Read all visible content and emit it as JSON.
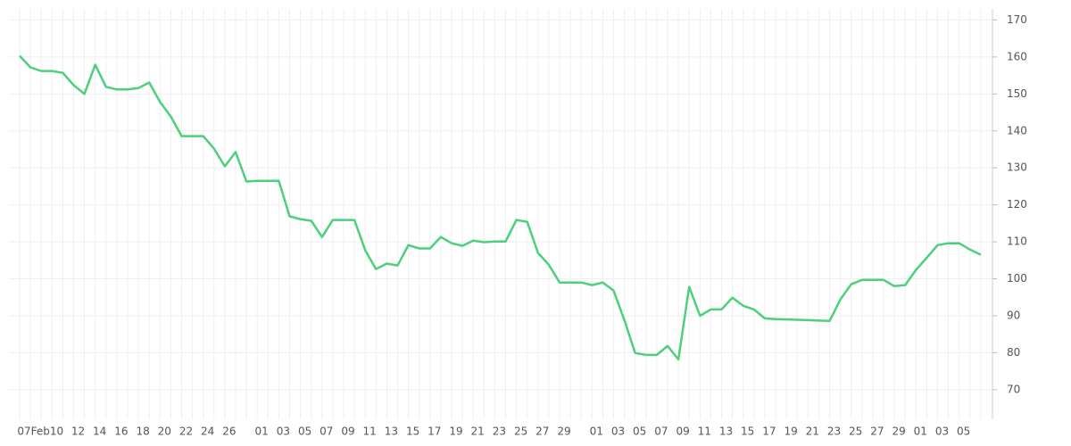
{
  "chart_data": {
    "type": "line",
    "categories": [
      "07",
      "Feb",
      null,
      "10",
      null,
      "12",
      null,
      "14",
      null,
      "16",
      null,
      "18",
      null,
      "20",
      null,
      "22",
      null,
      "24",
      null,
      "26",
      null,
      null,
      "01",
      null,
      "03",
      null,
      "05",
      null,
      "07",
      null,
      "09",
      null,
      "11",
      null,
      "13",
      null,
      "15",
      null,
      "17",
      null,
      "19",
      null,
      "21",
      null,
      "23",
      null,
      "25",
      null,
      "27",
      null,
      "29",
      null,
      null,
      "01",
      null,
      "03",
      null,
      "05",
      null,
      "07",
      null,
      "09",
      null,
      "11",
      null,
      "13",
      null,
      "15",
      null,
      "17",
      null,
      "19",
      null,
      "21",
      null,
      "23",
      null,
      "25",
      null,
      "27",
      null,
      "29",
      null,
      "01",
      null,
      "03",
      null,
      "05",
      null,
      null
    ],
    "values": [
      160.3,
      157.2,
      156.2,
      156.2,
      155.7,
      152.4,
      150.0,
      157.9,
      151.9,
      151.2,
      151.2,
      151.6,
      153.1,
      147.8,
      143.9,
      138.6,
      138.6,
      138.6,
      135.2,
      130.4,
      134.3,
      126.3,
      126.5,
      126.5,
      126.5,
      116.9,
      116.1,
      115.7,
      111.3,
      115.9,
      115.9,
      115.9,
      107.7,
      102.6,
      104.1,
      103.6,
      109.1,
      108.2,
      108.2,
      111.3,
      109.6,
      108.9,
      110.3,
      109.9,
      110.1,
      110.1,
      115.9,
      115.4,
      107.0,
      103.8,
      99.0,
      99.0,
      99.0,
      98.3,
      99.0,
      96.8,
      88.8,
      79.9,
      79.4,
      79.4,
      81.8,
      78.2,
      97.8,
      90.0,
      91.7,
      91.7,
      94.9,
      92.7,
      91.7,
      89.3,
      89.1,
      89.0,
      88.9,
      88.8,
      88.7,
      88.6,
      94.4,
      98.5,
      99.7,
      99.7,
      99.7,
      98.0,
      98.3,
      102.4,
      105.7,
      109.1,
      109.6,
      109.6,
      107.9,
      106.5
    ],
    "color": "#4cd07d",
    "ylim": [
      62,
      173
    ],
    "yticks": [
      70,
      80,
      90,
      100,
      110,
      120,
      130,
      140,
      150,
      160,
      170
    ],
    "grid": true
  }
}
